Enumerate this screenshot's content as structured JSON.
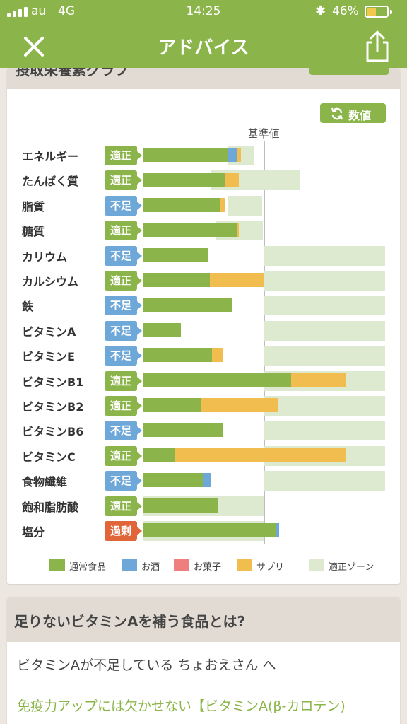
{
  "status": {
    "carrier": "au",
    "network": "4G",
    "time": "14:25",
    "battery": "46%"
  },
  "nav": {
    "title": "アドバイス",
    "close_icon": "close-icon",
    "share_icon": "share-icon"
  },
  "intake_card": {
    "header_partial": "摂取栄養素グラフ",
    "numeric_button": "数値",
    "basis_label": "基準値",
    "status_colors": {
      "適正": "#8bb54a",
      "不足": "#6ea8d8",
      "過剰": "#e0663a"
    },
    "rows": [
      {
        "name": "エネルギー",
        "status": "適正",
        "zone": [
          0.7,
          0.91
        ],
        "segments": {
          "food": 0.7,
          "alcohol": 0.07,
          "supplement": 0.04
        }
      },
      {
        "name": "たんぱく質",
        "status": "適正",
        "zone": [
          0.56,
          1.3
        ],
        "segments": {
          "food": 0.68,
          "supplement": 0.11
        }
      },
      {
        "name": "脂質",
        "status": "不足",
        "zone": [
          0.7,
          0.98
        ],
        "segments": {
          "food": 0.64,
          "supplement": 0.03
        }
      },
      {
        "name": "糖質",
        "status": "適正",
        "zone": [
          0.6,
          0.99
        ],
        "segments": {
          "food": 0.77,
          "supplement": 0.02
        }
      },
      {
        "name": "カリウム",
        "status": "不足",
        "zone": [
          1.0,
          2.0
        ],
        "segments": {
          "food": 0.54
        }
      },
      {
        "name": "カルシウム",
        "status": "適正",
        "zone": [
          1.0,
          2.0
        ],
        "segments": {
          "food": 0.55,
          "supplement": 0.45
        }
      },
      {
        "name": "鉄",
        "status": "不足",
        "zone": [
          1.0,
          2.0
        ],
        "segments": {
          "food": 0.73
        }
      },
      {
        "name": "ビタミンA",
        "status": "不足",
        "zone": [
          1.0,
          2.0
        ],
        "segments": {
          "food": 0.31
        }
      },
      {
        "name": "ビタミンE",
        "status": "不足",
        "zone": [
          1.0,
          2.0
        ],
        "segments": {
          "food": 0.57,
          "supplement": 0.09
        }
      },
      {
        "name": "ビタミンB1",
        "status": "適正",
        "zone": [
          1.0,
          2.0
        ],
        "segments": {
          "food": 1.22,
          "supplement": 0.45
        }
      },
      {
        "name": "ビタミンB2",
        "status": "適正",
        "zone": [
          1.0,
          2.0
        ],
        "segments": {
          "food": 0.48,
          "supplement": 0.63
        }
      },
      {
        "name": "ビタミンB6",
        "status": "不足",
        "zone": [
          1.0,
          2.0
        ],
        "segments": {
          "food": 0.66
        }
      },
      {
        "name": "ビタミンC",
        "status": "適正",
        "zone": [
          1.0,
          2.0
        ],
        "segments": {
          "food": 0.26,
          "supplement": 1.42
        }
      },
      {
        "name": "食物繊維",
        "status": "不足",
        "zone": [
          1.0,
          2.0
        ],
        "segments": {
          "food": 0.49,
          "alcohol": 0.07
        }
      },
      {
        "name": "飽和脂肪酸",
        "status": "適正",
        "zone": [
          0.0,
          1.0
        ],
        "segments": {
          "food": 0.62
        }
      },
      {
        "name": "塩分",
        "status": "過剰",
        "zone": [
          0.0,
          1.0
        ],
        "segments": {
          "food": 1.1,
          "alcohol": 0.02
        }
      }
    ],
    "legend": [
      {
        "label": "通常食品",
        "color": "#8bb54a"
      },
      {
        "label": "お酒",
        "color": "#6ea8d8"
      },
      {
        "label": "お菓子",
        "color": "#ef7f7f"
      },
      {
        "label": "サプリ",
        "color": "#f2bd4f"
      },
      {
        "label": "適正ゾーン",
        "color": "#deead0"
      }
    ]
  },
  "advice_card": {
    "title": "足りないビタミンAを補う食品とは?",
    "line1": "ビタミンAが不足している ちょおえさん へ",
    "link_text": "免疫力アップには欠かせない【ビタミンA(β-カロテン)"
  }
}
